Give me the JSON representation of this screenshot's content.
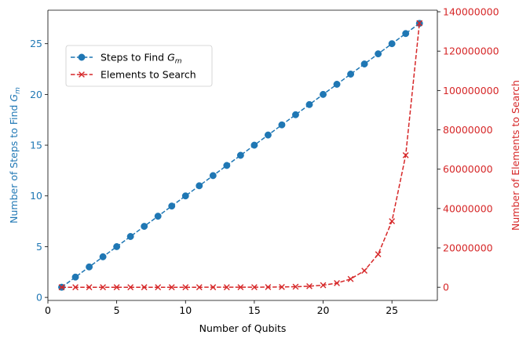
{
  "chart_data": {
    "type": "line",
    "xlabel": "Number of Qubits",
    "xlim": [
      0,
      28.3
    ],
    "x_ticks": [
      0,
      5,
      10,
      15,
      20,
      25
    ],
    "x": [
      1,
      2,
      3,
      4,
      5,
      6,
      7,
      8,
      9,
      10,
      11,
      12,
      13,
      14,
      15,
      16,
      17,
      18,
      19,
      20,
      21,
      22,
      23,
      24,
      25,
      26,
      27
    ],
    "y_left": {
      "label_text": "Number of Steps to Find ",
      "label_symbol": "G",
      "label_subscript": "m",
      "color": "#1f77b4",
      "lim": [
        -0.3,
        28.3
      ],
      "ticks": [
        0,
        5,
        10,
        15,
        20,
        25
      ]
    },
    "y_right": {
      "label": "Number of Elements to Search",
      "color": "#d62728",
      "lim": [
        -6700000,
        140800000
      ],
      "ticks": [
        0,
        20000000,
        40000000,
        60000000,
        80000000,
        100000000,
        120000000,
        140000000
      ],
      "tick_labels": [
        "0",
        "20000000",
        "40000000",
        "60000000",
        "80000000",
        "100000000",
        "120000000",
        "140000000"
      ]
    },
    "series": [
      {
        "name_text": "Steps to Find ",
        "name_symbol": "G",
        "name_subscript": "m",
        "axis": "left",
        "marker": "circle",
        "line": "dashed",
        "color": "#1f77b4",
        "values": [
          1,
          2,
          3,
          4,
          5,
          6,
          7,
          8,
          9,
          10,
          11,
          12,
          13,
          14,
          15,
          16,
          17,
          18,
          19,
          20,
          21,
          22,
          23,
          24,
          25,
          26,
          27
        ]
      },
      {
        "name": "Elements to Search",
        "axis": "right",
        "marker": "x",
        "line": "dashed",
        "color": "#d62728",
        "values": [
          2,
          4,
          8,
          16,
          32,
          64,
          128,
          256,
          512,
          1024,
          2048,
          4096,
          8192,
          16384,
          32768,
          65536,
          131072,
          262144,
          524288,
          1048576,
          2097152,
          4194304,
          8388608,
          16777216,
          33554432,
          67108864,
          134217728
        ]
      }
    ],
    "legend": "upper-left",
    "grid": false
  }
}
